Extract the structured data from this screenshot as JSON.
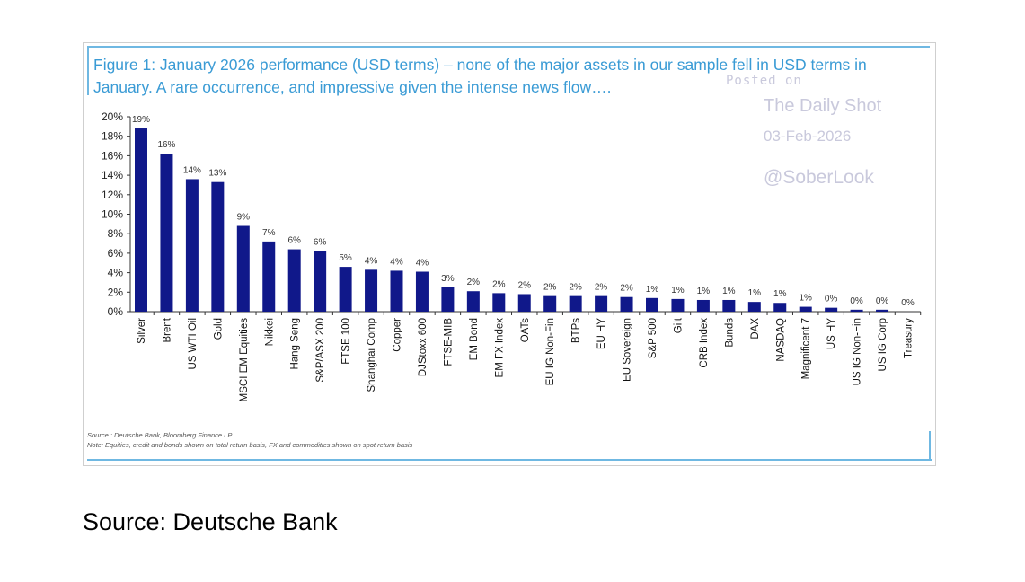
{
  "chart_data": {
    "type": "bar",
    "title": "Figure 1: January 2026 performance (USD terms) – none of the major assets in our sample fell in USD terms in January. A rare occurrence, and impressive given the intense news flow….",
    "xlabel": "",
    "ylabel": "",
    "ylim": [
      0,
      20
    ],
    "yticks": [
      "0%",
      "2%",
      "4%",
      "6%",
      "8%",
      "10%",
      "12%",
      "14%",
      "16%",
      "18%",
      "20%"
    ],
    "grid": false,
    "bar_color": "#10188a",
    "categories": [
      "Silver",
      "Brent",
      "US WTI Oil",
      "Gold",
      "MSCI EM Equities",
      "Nikkei",
      "Hang Seng",
      "S&P/ASX 200",
      "FTSE 100",
      "Shanghai Comp",
      "Copper",
      "DJStoxx 600",
      "FTSE-MIB",
      "EM Bond",
      "EM FX Index",
      "OATs",
      "EU IG Non-Fin",
      "BTPs",
      "EU HY",
      "EU Sovereign",
      "S&P 500",
      "Gilt",
      "CRB Index",
      "Bunds",
      "DAX",
      "NASDAQ",
      "Magnificent 7",
      "US HY",
      "US IG Non-Fin",
      "US IG Corp",
      "Treasury"
    ],
    "values": [
      18.8,
      16.2,
      13.6,
      13.3,
      8.8,
      7.2,
      6.4,
      6.2,
      4.6,
      4.3,
      4.2,
      4.1,
      2.5,
      2.1,
      1.9,
      1.8,
      1.6,
      1.6,
      1.6,
      1.5,
      1.4,
      1.3,
      1.2,
      1.2,
      1.0,
      0.9,
      0.5,
      0.4,
      0.2,
      0.2,
      0.0
    ],
    "data_labels": [
      "19%",
      "16%",
      "14%",
      "13%",
      "9%",
      "7%",
      "6%",
      "6%",
      "5%",
      "4%",
      "4%",
      "4%",
      "3%",
      "2%",
      "2%",
      "2%",
      "2%",
      "2%",
      "2%",
      "2%",
      "1%",
      "1%",
      "1%",
      "1%",
      "1%",
      "1%",
      "1%",
      "0%",
      "0%",
      "0%",
      "0%"
    ]
  },
  "watermark": {
    "posted_on": "Posted on",
    "brand": "The Daily Shot",
    "date": "03-Feb-2026",
    "handle": "@SoberLook"
  },
  "notes": {
    "source": "Source : Deutsche Bank, Bloomberg Finance LP",
    "note": "Note: Equities, credit and bonds shown on total return basis, FX and commodities shown on spot return basis"
  },
  "caption": "Source: Deutsche Bank"
}
